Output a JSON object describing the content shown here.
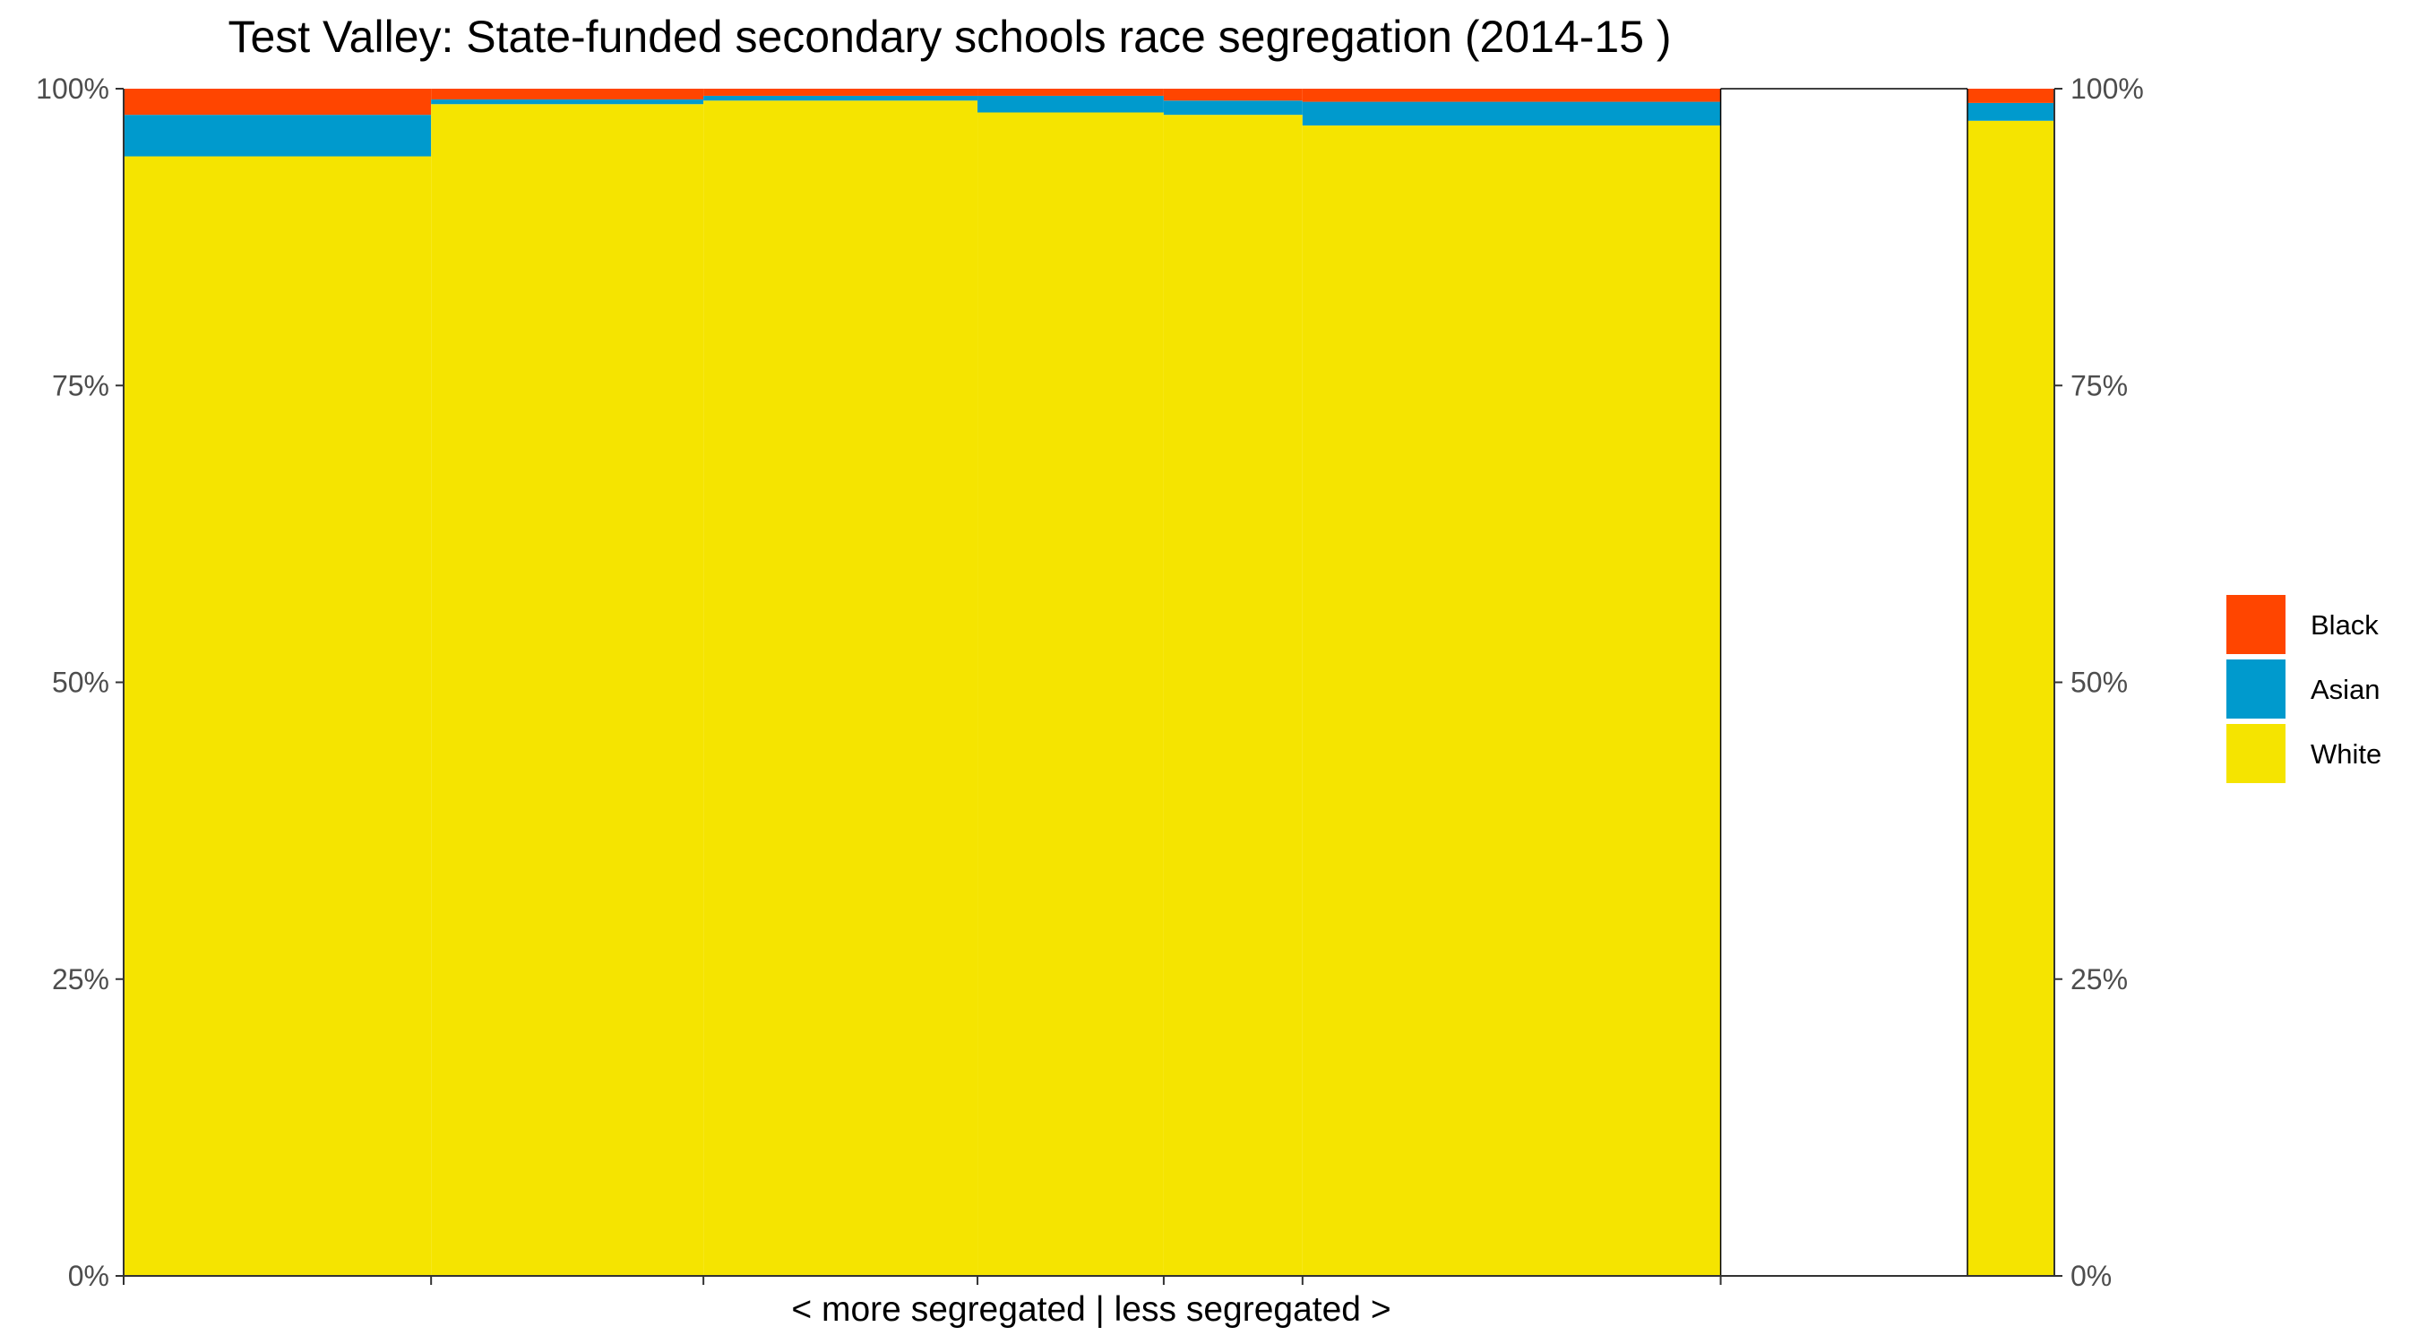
{
  "chart_data": {
    "type": "bar",
    "subtype": "stacked-percent-mosaic",
    "title": "Test Valley: State-funded secondary schools race segregation (2014-15 )",
    "xlabel": "< more segregated | less segregated >",
    "ylabel": "",
    "ylim": [
      0,
      1
    ],
    "y_ticks": [
      "0%",
      "25%",
      "50%",
      "75%",
      "100%"
    ],
    "y_tick_values": [
      0,
      0.25,
      0.5,
      0.75,
      1
    ],
    "y_axis_both_sides": true,
    "grid": false,
    "legend_position": "right",
    "series": [
      {
        "name": "Black",
        "color": "#FF4500"
      },
      {
        "name": "Asian",
        "color": "#009ACD"
      },
      {
        "name": "White",
        "color": "#F5E400"
      }
    ],
    "x_range": [
      0,
      100
    ],
    "schools": [
      {
        "x_start": 0.0,
        "x_end": 17.5,
        "White": 0.943,
        "Asian": 0.035,
        "Black": 0.022
      },
      {
        "x_start": 17.5,
        "x_end": 33.0,
        "White": 0.987,
        "Asian": 0.004,
        "Black": 0.009
      },
      {
        "x_start": 33.0,
        "x_end": 48.6,
        "White": 0.99,
        "Asian": 0.004,
        "Black": 0.006
      },
      {
        "x_start": 48.6,
        "x_end": 59.2,
        "White": 0.98,
        "Asian": 0.014,
        "Black": 0.006
      },
      {
        "x_start": 59.2,
        "x_end": 67.1,
        "White": 0.978,
        "Asian": 0.012,
        "Black": 0.01
      },
      {
        "x_start": 67.1,
        "x_end": 90.9,
        "White": 0.969,
        "Asian": 0.02,
        "Black": 0.011
      }
    ],
    "summary_bar": {
      "White": 0.973,
      "Asian": 0.015,
      "Black": 0.012
    }
  }
}
